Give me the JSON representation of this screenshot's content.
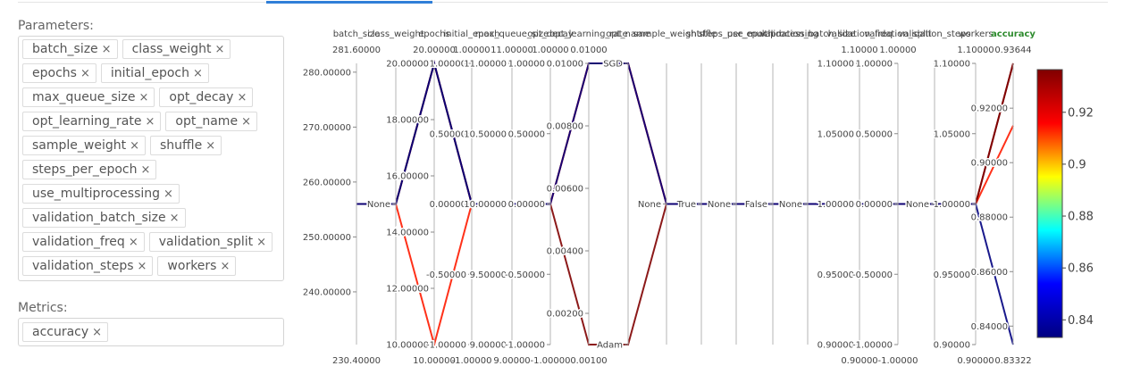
{
  "parameters": {
    "label": "Parameters:",
    "chips": [
      {
        "label": "batch_size"
      },
      {
        "label": "class_weight"
      },
      {
        "label": "epochs"
      },
      {
        "label": "initial_epoch"
      },
      {
        "label": "max_queue_size"
      },
      {
        "label": "opt_decay"
      },
      {
        "label": "opt_learning_rate"
      },
      {
        "label": "opt_name"
      },
      {
        "label": "sample_weight"
      },
      {
        "label": "shuffle"
      },
      {
        "label": "steps_per_epoch"
      },
      {
        "label": "use_multiprocessing"
      },
      {
        "label": "validation_batch_size"
      },
      {
        "label": "validation_freq"
      },
      {
        "label": "validation_split"
      },
      {
        "label": "validation_steps"
      },
      {
        "label": "workers"
      }
    ],
    "remove_glyph": "×"
  },
  "metrics": {
    "label": "Metrics:",
    "chips": [
      {
        "label": "accuracy"
      }
    ]
  },
  "chart_data": {
    "type": "parallel_coordinates",
    "color_by": "accuracy",
    "colorscale": [
      "#000080",
      "#0000ff",
      "#00ffff",
      "#ffff00",
      "#ff0000",
      "#800000"
    ],
    "colorbar": {
      "min": 0.83322,
      "max": 0.93644,
      "ticks": [
        "0.84",
        "0.86",
        "0.88",
        "0.9",
        "0.92"
      ]
    },
    "axes": [
      {
        "name": "batch_size",
        "range_top": "281.60000",
        "range_bottom": "230.40000",
        "ticks": [
          "280.00000",
          "270.00000",
          "260.00000",
          "250.00000",
          "240.00000"
        ]
      },
      {
        "name": "class_weight",
        "categories": [
          "None"
        ]
      },
      {
        "name": "epochs",
        "range_top": "20.00000",
        "range_bottom": "10.00000",
        "ticks": [
          "20.00000",
          "18.00000",
          "16.00000",
          "14.00000",
          "12.00000",
          "10.00000"
        ]
      },
      {
        "name": "initial_epoch",
        "range_top": "1.00000",
        "range_bottom": "-1.00000",
        "ticks": [
          "1.00000",
          "0.50000",
          "0.00000",
          "-0.50000",
          "-1.00000"
        ]
      },
      {
        "name": "max_queue_size",
        "range_top": "11.00000",
        "range_bottom": "9.00000",
        "ticks": [
          "11.00000",
          "10.50000",
          "10.00000",
          "9.50000",
          "9.00000"
        ]
      },
      {
        "name": "opt_decay",
        "range_top": "1.00000",
        "range_bottom": "-1.00000",
        "ticks": [
          "1.00000",
          "0.50000",
          "0.00000",
          "-0.50000",
          "-1.00000"
        ]
      },
      {
        "name": "opt_learning_rate",
        "range_top": "0.01000",
        "range_bottom": "0.00100",
        "ticks": [
          "0.01000",
          "0.00800",
          "0.00600",
          "0.00400",
          "0.00200"
        ]
      },
      {
        "name": "opt_name",
        "categories": [
          "SGD",
          "Adam"
        ]
      },
      {
        "name": "sample_weight",
        "categories": [
          "None"
        ]
      },
      {
        "name": "shuffle",
        "categories": [
          "True"
        ]
      },
      {
        "name": "steps_per_epoch",
        "categories": [
          "None"
        ]
      },
      {
        "name": "use_multiprocessing",
        "categories": [
          "False"
        ]
      },
      {
        "name": "validation_batch_size",
        "categories": [
          "None"
        ]
      },
      {
        "name": "validation_freq",
        "range_top": "1.10000",
        "range_bottom": "0.90000",
        "ticks": [
          "1.10000",
          "1.05000",
          "1.00000",
          "0.95000",
          "0.90000"
        ]
      },
      {
        "name": "validation_split",
        "range_top": "1.00000",
        "range_bottom": "-1.00000",
        "ticks": [
          "1.00000",
          "0.50000",
          "0.00000",
          "-0.50000",
          "-1.00000"
        ]
      },
      {
        "name": "validation_steps",
        "categories": [
          "None"
        ]
      },
      {
        "name": "workers",
        "range_top": "1.10000",
        "range_bottom": "0.90000",
        "ticks": [
          "1.10000",
          "1.05000",
          "1.00000",
          "0.95000",
          "0.90000"
        ]
      },
      {
        "name": "accuracy",
        "range_top": "0.93644",
        "range_bottom": "0.83322",
        "ticks": [
          "0.92000",
          "0.90000",
          "0.88000",
          "0.86000",
          "0.84000"
        ]
      }
    ],
    "runs": [
      {
        "batch_size": 256,
        "class_weight": "None",
        "epochs": 20,
        "initial_epoch": 0,
        "max_queue_size": 10,
        "opt_decay": 0,
        "opt_learning_rate": 0.01,
        "opt_name": "SGD",
        "sample_weight": "None",
        "shuffle": "True",
        "steps_per_epoch": "None",
        "use_multiprocessing": "False",
        "validation_batch_size": "None",
        "validation_freq": 1,
        "validation_split": 0,
        "validation_steps": "None",
        "workers": 1,
        "accuracy": 0.93644
      },
      {
        "batch_size": 256,
        "class_weight": "None",
        "epochs": 10,
        "initial_epoch": 0,
        "max_queue_size": 10,
        "opt_decay": 0,
        "opt_learning_rate": 0.01,
        "opt_name": "SGD",
        "sample_weight": "None",
        "shuffle": "True",
        "steps_per_epoch": "None",
        "use_multiprocessing": "False",
        "validation_batch_size": "None",
        "validation_freq": 1,
        "validation_split": 0,
        "validation_steps": "None",
        "workers": 1,
        "accuracy": 0.9136
      },
      {
        "batch_size": 256,
        "class_weight": "None",
        "epochs": 20,
        "initial_epoch": 0,
        "max_queue_size": 10,
        "opt_decay": 0,
        "opt_learning_rate": 0.001,
        "opt_name": "Adam",
        "sample_weight": "None",
        "shuffle": "True",
        "steps_per_epoch": "None",
        "use_multiprocessing": "False",
        "validation_batch_size": "None",
        "validation_freq": 1,
        "validation_split": 0,
        "validation_steps": "None",
        "workers": 1,
        "accuracy": 0.93644
      },
      {
        "batch_size": 256,
        "class_weight": "None",
        "epochs": 20,
        "initial_epoch": 0,
        "max_queue_size": 10,
        "opt_decay": 0,
        "opt_learning_rate": 0.01,
        "opt_name": "SGD",
        "sample_weight": "None",
        "shuffle": "True",
        "steps_per_epoch": "None",
        "use_multiprocessing": "False",
        "validation_batch_size": "None",
        "validation_freq": 1,
        "validation_split": 0,
        "validation_steps": "None",
        "workers": 1,
        "accuracy": 0.83322
      }
    ]
  }
}
